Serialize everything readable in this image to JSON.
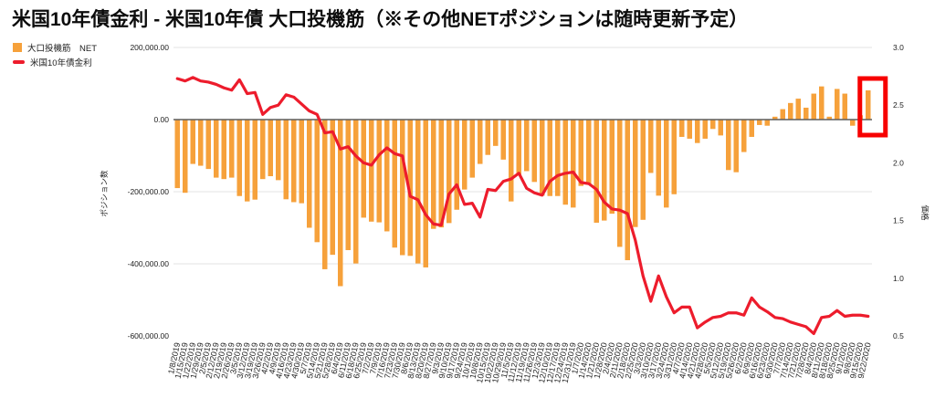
{
  "title": "米国10年債金利 - 米国10年債 大口投機筋（※その他NETポジションは随時更新予定）",
  "legend": [
    {
      "label": "大口投機筋　NET",
      "marker": "square",
      "color": "#F6A13B"
    },
    {
      "label": "米国10年債金利",
      "marker": "line",
      "color": "#ED1C2C"
    }
  ],
  "chart_data": {
    "type": "bar",
    "title": "米国10年債金利 - 米国10年債 大口投機筋（※その他NETポジションは随時更新予定）",
    "categories": [
      "1/8/2019",
      "1/15/2019",
      "1/22/2019",
      "1/29/2019",
      "2/5/2019",
      "2/12/2019",
      "2/19/2019",
      "2/26/2019",
      "3/5/2019",
      "3/12/2019",
      "3/19/2019",
      "3/26/2019",
      "4/2/2019",
      "4/9/2019",
      "4/16/2019",
      "4/23/2019",
      "4/30/2019",
      "5/7/2019",
      "5/14/2019",
      "5/21/2019",
      "5/28/2019",
      "6/4/2019",
      "6/11/2019",
      "6/18/2019",
      "6/25/2019",
      "7/2/2019",
      "7/9/2019",
      "7/16/2019",
      "7/23/2019",
      "7/30/2019",
      "8/6/2019",
      "8/13/2019",
      "8/20/2019",
      "8/27/2019",
      "9/3/2019",
      "9/10/2019",
      "9/17/2019",
      "9/24/2019",
      "10/1/2019",
      "10/8/2019",
      "10/15/2019",
      "10/22/2019",
      "10/29/2019",
      "11/5/2019",
      "11/12/2019",
      "11/19/2019",
      "11/26/2019",
      "12/3/2019",
      "12/10/2019",
      "12/17/2019",
      "12/24/2019",
      "12/31/2019",
      "1/7/2020",
      "1/14/2020",
      "1/21/2020",
      "1/28/2020",
      "2/4/2020",
      "2/11/2020",
      "2/18/2020",
      "2/25/2020",
      "3/3/2020",
      "3/10/2020",
      "3/17/2020",
      "3/24/2020",
      "3/31/2020",
      "4/7/2020",
      "4/14/2020",
      "4/21/2020",
      "4/28/2020",
      "5/5/2020",
      "5/12/2020",
      "5/19/2020",
      "5/26/2020",
      "6/2/2020",
      "6/9/2020",
      "6/16/2020",
      "6/23/2020",
      "6/30/2020",
      "7/7/2020",
      "7/14/2020",
      "7/21/2020",
      "7/28/2020",
      "8/4/2020",
      "8/11/2020",
      "8/18/2020",
      "8/25/2020",
      "9/1/2020",
      "9/8/2020",
      "9/15/2020",
      "9/22/2020"
    ],
    "series": [
      {
        "name": "大口投機筋　NET",
        "type": "bar",
        "axis": "left",
        "color": "#F6A13B",
        "values": [
          -190000,
          -203000,
          -123000,
          -128000,
          -137000,
          -161000,
          -165000,
          -161000,
          -212000,
          -227000,
          -222000,
          -165000,
          -157000,
          -168000,
          -221000,
          -229000,
          -232000,
          -300000,
          -340000,
          -415000,
          -375000,
          -462000,
          -362000,
          -399000,
          -272000,
          -283000,
          -285000,
          -310000,
          -355000,
          -376000,
          -378000,
          -399000,
          -410000,
          -303000,
          -299000,
          -287000,
          -250000,
          -194000,
          -161000,
          -123000,
          -98000,
          -73000,
          -111000,
          -227000,
          -153000,
          -143000,
          -173000,
          -211000,
          -212000,
          -212000,
          -236000,
          -244000,
          -184000,
          -178000,
          -286000,
          -280000,
          -261000,
          -353000,
          -390000,
          -298000,
          -278000,
          -148000,
          -211000,
          -244000,
          -207000,
          -48000,
          -53000,
          -65000,
          -53000,
          -26000,
          -44000,
          -140000,
          -146000,
          -90000,
          -48000,
          -15000,
          -17000,
          8000,
          29000,
          46000,
          58000,
          33000,
          72000,
          92000,
          8000,
          85000,
          72000,
          -17000,
          12000,
          81000
        ]
      },
      {
        "name": "米国10年債金利",
        "type": "line",
        "axis": "right",
        "color": "#ED1C2C",
        "values": [
          2.73,
          2.71,
          2.74,
          2.71,
          2.7,
          2.68,
          2.65,
          2.63,
          2.72,
          2.6,
          2.61,
          2.42,
          2.48,
          2.5,
          2.59,
          2.57,
          2.51,
          2.45,
          2.42,
          2.26,
          2.27,
          2.12,
          2.14,
          2.06,
          2.0,
          1.98,
          2.07,
          2.13,
          2.08,
          2.06,
          1.71,
          1.68,
          1.55,
          1.47,
          1.46,
          1.73,
          1.81,
          1.64,
          1.65,
          1.53,
          1.77,
          1.76,
          1.84,
          1.86,
          1.91,
          1.78,
          1.74,
          1.72,
          1.84,
          1.89,
          1.91,
          1.92,
          1.83,
          1.82,
          1.77,
          1.66,
          1.6,
          1.59,
          1.56,
          1.33,
          1.02,
          0.8,
          1.02,
          0.84,
          0.7,
          0.75,
          0.75,
          0.57,
          0.62,
          0.66,
          0.67,
          0.7,
          0.7,
          0.68,
          0.83,
          0.75,
          0.71,
          0.66,
          0.65,
          0.62,
          0.6,
          0.58,
          0.52,
          0.66,
          0.67,
          0.72,
          0.67,
          0.68,
          0.68,
          0.67
        ]
      }
    ],
    "left_axis": {
      "label": "ポジション数",
      "min": -600000,
      "max": 200000,
      "ticks": [
        {
          "label": "200,000.00",
          "value": 200000
        },
        {
          "label": "0.00",
          "value": 0
        },
        {
          "label": "-200,000.00",
          "value": -200000
        },
        {
          "label": "-400,000.00",
          "value": -400000
        },
        {
          "label": "-600,000.00",
          "value": -600000
        }
      ]
    },
    "right_axis": {
      "label": "価格",
      "min": 0.5,
      "max": 3.0,
      "ticks": [
        {
          "label": "3.0",
          "value": 3.0
        },
        {
          "label": "2.5",
          "value": 2.5
        },
        {
          "label": "2.0",
          "value": 2.0
        },
        {
          "label": "1.5",
          "value": 1.5
        },
        {
          "label": "1.0",
          "value": 1.0
        },
        {
          "label": "0.5",
          "value": 0.5
        }
      ]
    },
    "grid": "horizontal",
    "legend_position": "top-left",
    "annotation": {
      "shape": "rect",
      "color": "#F70000",
      "target_date": "9/22/2020"
    }
  }
}
